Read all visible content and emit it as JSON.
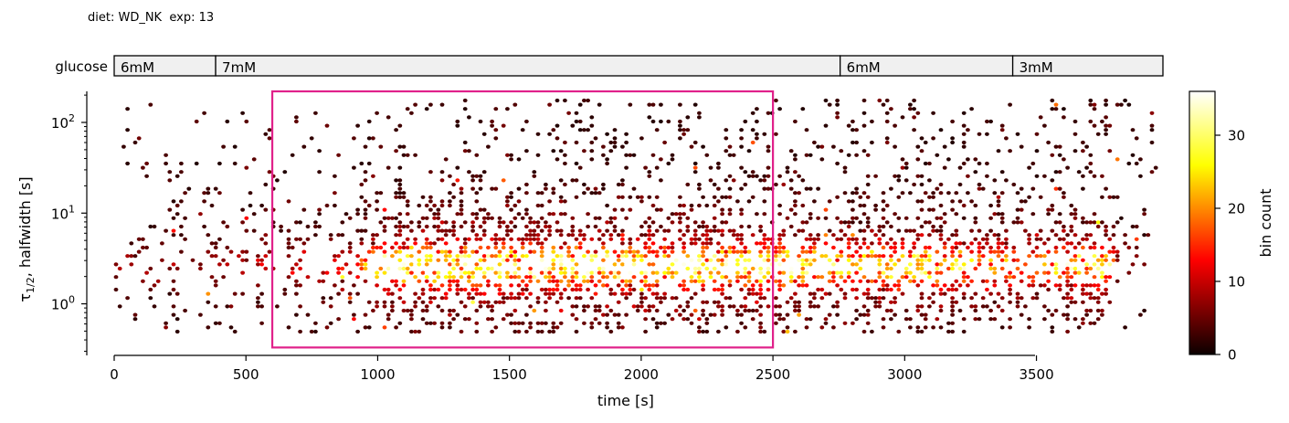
{
  "header": {
    "text": "diet: WD_NK  exp: 13"
  },
  "glucose_bar": {
    "label": "glucose",
    "segments": [
      {
        "label": "6mM",
        "start": 0,
        "end": 385
      },
      {
        "label": "7mM",
        "start": 385,
        "end": 2755
      },
      {
        "label": "6mM",
        "start": 2755,
        "end": 3410
      },
      {
        "label": "3mM",
        "start": 3410,
        "end": 3980
      }
    ]
  },
  "chart_data": {
    "type": "heatmap",
    "title": "",
    "xlabel": "time [s]",
    "ylabel": "τ1/2, halfwidth [s]",
    "xlim": [
      0,
      3980
    ],
    "ylim": [
      0.27,
      220
    ],
    "yscale": "log",
    "xticks": [
      0,
      500,
      1000,
      1500,
      2000,
      2500,
      3000,
      3500
    ],
    "yticks": [
      {
        "value": 1,
        "label": "10",
        "exp": "0"
      },
      {
        "value": 10,
        "label": "10",
        "exp": "1"
      },
      {
        "value": 100,
        "label": "10",
        "exp": "2"
      }
    ],
    "highlight_box": {
      "x0": 600,
      "x1": 2500,
      "y0": 0.33,
      "y1": 220,
      "color": "#e0218a"
    },
    "colorbar": {
      "label": "bin count",
      "min": 0,
      "max": 36,
      "ticks": [
        0,
        10,
        20,
        30
      ],
      "colormap": "hot"
    },
    "density_profile": {
      "time_density": [
        [
          0,
          0.15
        ],
        [
          400,
          0.2
        ],
        [
          600,
          0.25
        ],
        [
          900,
          0.35
        ],
        [
          1000,
          0.8
        ],
        [
          1200,
          1.0
        ],
        [
          2000,
          0.95
        ],
        [
          2500,
          1.0
        ],
        [
          2700,
          0.75
        ],
        [
          3000,
          0.95
        ],
        [
          3300,
          0.7
        ],
        [
          3500,
          0.6
        ],
        [
          3700,
          0.9
        ],
        [
          3780,
          0.85
        ],
        [
          3820,
          0.15
        ],
        [
          3980,
          0.12
        ]
      ],
      "typical_halfwidth_s": 2.6
    }
  }
}
